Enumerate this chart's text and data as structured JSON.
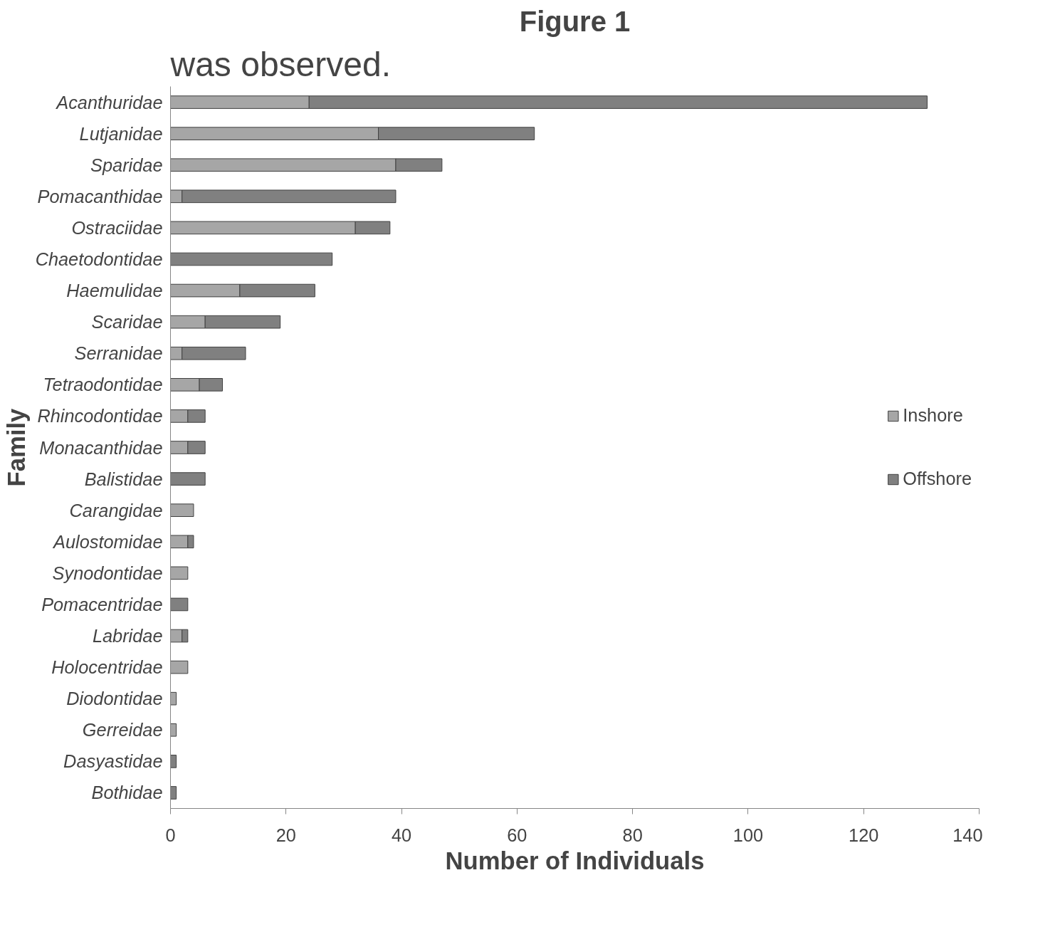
{
  "chart_data": {
    "type": "bar",
    "orientation": "horizontal",
    "stacked": true,
    "title": "Figure 1",
    "xlabel": "Number of Individuals",
    "ylabel": "Family",
    "annotations": [
      "was observed."
    ],
    "categories": [
      "Acanthuridae",
      "Lutjanidae",
      "Sparidae",
      "Pomacanthidae",
      "Ostraciidae",
      "Chaetodontidae",
      "Haemulidae",
      "Scaridae",
      "Serranidae",
      "Tetraodontidae",
      "Rhincodontidae",
      "Monacanthidae",
      "Balistidae",
      "Carangidae",
      "Aulostomidae",
      "Synodontidae",
      "Pomacentridae",
      "Labridae",
      "Holocentridae",
      "Diodontidae",
      "Gerreidae",
      "Dasyastidae",
      "Bothidae"
    ],
    "series": [
      {
        "name": "Inshore",
        "color": "#a6a6a6",
        "values": [
          24,
          36,
          39,
          2,
          32,
          null,
          12,
          6,
          2,
          5,
          3,
          3,
          null,
          4,
          3,
          3,
          null,
          2,
          3,
          1,
          1,
          null,
          null
        ]
      },
      {
        "name": "Offshore",
        "color": "#808080",
        "values": [
          107,
          27,
          8,
          37,
          6,
          28,
          13,
          13,
          11,
          4,
          3,
          3,
          6,
          null,
          1,
          null,
          3,
          1,
          null,
          null,
          null,
          1,
          1
        ]
      }
    ],
    "xlim": [
      0,
      140
    ],
    "xticks": [
      0,
      20,
      40,
      60,
      80,
      100,
      120,
      140
    ],
    "grid": false,
    "legend": "right"
  }
}
